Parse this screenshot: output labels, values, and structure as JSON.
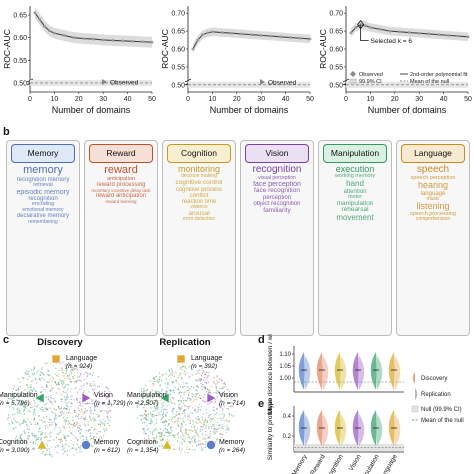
{
  "panel_labels": {
    "b": "b",
    "c": "c",
    "d": "d",
    "e": "e"
  },
  "top_plots": {
    "ylabel": "ROC-AUC",
    "xlabel": "Number of domains",
    "plot1": {
      "yticks": [
        "0.65",
        "0.60",
        "0.55",
        "0.50"
      ],
      "xticks": [
        "0",
        "10",
        "20",
        "30",
        "40",
        "50"
      ],
      "legend": "Observed"
    },
    "plot2": {
      "yticks": [
        "0.70",
        "0.65",
        "0.60",
        "0.55",
        "0.50"
      ],
      "xticks": [
        "0",
        "10",
        "20",
        "30",
        "40",
        "50"
      ],
      "legend": "Observed"
    },
    "plot3": {
      "yticks": [
        "0.70",
        "0.65",
        "0.60",
        "0.55",
        "0.50"
      ],
      "xticks": [
        "0",
        "10",
        "20",
        "30",
        "40",
        "50"
      ],
      "annotation": "Selected k = 6",
      "legend": [
        "Observed",
        "99.9% CI",
        "2nd-order polynomial fit",
        "Mean of the null"
      ]
    }
  },
  "chart_data": [
    {
      "type": "line",
      "xlabel": "Number of domains",
      "ylabel": "ROC-AUC",
      "ylim": [
        0.48,
        0.67
      ],
      "series": [
        {
          "name": "Observed",
          "x": [
            2,
            4,
            6,
            8,
            10,
            14,
            18,
            22,
            26,
            30,
            34,
            38,
            42,
            46,
            50
          ],
          "y": [
            0.655,
            0.64,
            0.625,
            0.615,
            0.61,
            0.605,
            0.6,
            0.598,
            0.597,
            0.595,
            0.594,
            0.593,
            0.592,
            0.591,
            0.59
          ]
        }
      ]
    },
    {
      "type": "line",
      "xlabel": "Number of domains",
      "ylabel": "ROC-AUC",
      "ylim": [
        0.48,
        0.72
      ],
      "series": [
        {
          "name": "Observed",
          "x": [
            2,
            4,
            6,
            8,
            10,
            14,
            18,
            22,
            26,
            30,
            34,
            38,
            42,
            46,
            50
          ],
          "y": [
            0.6,
            0.625,
            0.64,
            0.645,
            0.648,
            0.646,
            0.644,
            0.642,
            0.64,
            0.638,
            0.636,
            0.634,
            0.632,
            0.63,
            0.628
          ]
        }
      ]
    },
    {
      "type": "line",
      "xlabel": "Number of domains",
      "ylabel": "ROC-AUC",
      "ylim": [
        0.48,
        0.72
      ],
      "series": [
        {
          "name": "Observed",
          "x": [
            2,
            4,
            6,
            8,
            10,
            14,
            18,
            22,
            26,
            30,
            34,
            38,
            42,
            46,
            50
          ],
          "y": [
            0.645,
            0.66,
            0.668,
            0.665,
            0.66,
            0.655,
            0.65,
            0.648,
            0.646,
            0.644,
            0.642,
            0.64,
            0.638,
            0.636,
            0.634
          ]
        }
      ]
    }
  ],
  "domains": [
    {
      "name": "Memory",
      "color": "#4a6fb5",
      "fill": "#dfe8f6",
      "words": [
        [
          "memory",
          "11px"
        ],
        [
          "recognition memory",
          "6px"
        ],
        [
          "retrieval",
          "5.5px"
        ],
        [
          "episodic memory",
          "7px"
        ],
        [
          "recognition",
          "6px"
        ],
        [
          "encoding",
          "5.5px"
        ],
        [
          "emotional memory",
          "5px"
        ],
        [
          "declarative memory",
          "6px"
        ],
        [
          "remembering",
          "5px"
        ]
      ],
      "z": "z = -16",
      "ticks": [
        "0",
        "0.19",
        "0.38"
      ],
      "cbar": [
        "#111133",
        "#3b57a5",
        "#8fb0e8",
        "#e8eefb"
      ]
    },
    {
      "name": "Reward",
      "color": "#c0502b",
      "fill": "#f6e0d6",
      "words": [
        [
          "reward",
          "11px"
        ],
        [
          "anticipation",
          "5.5px"
        ],
        [
          "reward processing",
          "6px"
        ],
        [
          "monetary incentive delay task",
          "4.5px"
        ],
        [
          "reward anticipation",
          "6px"
        ],
        [
          "reward learning",
          "4.5px"
        ]
      ],
      "z": "z = -7",
      "ticks": [
        "0",
        "0.09",
        "0.19"
      ],
      "cbar": [
        "#2b0f0a",
        "#9c3a1f",
        "#e98a5c",
        "#fbe5d8"
      ]
    },
    {
      "name": "Cognition",
      "color": "#c99a1e",
      "fill": "#f7efcf",
      "words": [
        [
          "monitoring",
          "9px"
        ],
        [
          "decision making",
          "5px"
        ],
        [
          "cognitive control",
          "6.5px"
        ],
        [
          "cognitive process",
          "6px"
        ],
        [
          "conflict",
          "6px"
        ],
        [
          "reaction time",
          "6px"
        ],
        [
          "valence",
          "5px"
        ],
        [
          "arousal",
          "6.5px"
        ],
        [
          "error detection",
          "5px"
        ]
      ],
      "z": "z = 7",
      "ticks": [
        "0",
        "0.11",
        "0.22"
      ],
      "cbar": [
        "#2a200a",
        "#8c6a14",
        "#e7bf4a",
        "#fbf0cc"
      ]
    },
    {
      "name": "Vision",
      "color": "#7a3fa6",
      "fill": "#eadff3",
      "words": [
        [
          "recognition",
          "10px"
        ],
        [
          "visual perception",
          "5px"
        ],
        [
          "face perception",
          "7px"
        ],
        [
          "face recognition",
          "6.5px"
        ],
        [
          "perception",
          "6px"
        ],
        [
          "object recognition",
          "6px"
        ],
        [
          "familiarity",
          "6.5px"
        ]
      ],
      "z": "z = -19",
      "ticks": [
        "0",
        "0.11",
        "0.21"
      ],
      "cbar": [
        "#1c0b2a",
        "#6a2f96",
        "#b888d8",
        "#f1e6f8"
      ]
    },
    {
      "name": "Manipulation",
      "color": "#2f9a5c",
      "fill": "#d9f1e2",
      "words": [
        [
          "execution",
          "9px"
        ],
        [
          "working memory",
          "5.5px"
        ],
        [
          "hand",
          "8px"
        ],
        [
          "attention",
          "6px"
        ],
        [
          "motor",
          "5.5px"
        ],
        [
          "manipulation",
          "6.5px"
        ],
        [
          "rehearsal",
          "6.5px"
        ],
        [
          "movement",
          "8px"
        ]
      ],
      "z": "z = 59",
      "ticks": [
        "0",
        "0.095",
        "0.19"
      ],
      "cbar": [
        "#0b2416",
        "#247a47",
        "#6cc993",
        "#e2f6ea"
      ]
    },
    {
      "name": "Language",
      "color": "#c98a1f",
      "fill": "#f7ead0",
      "words": [
        [
          "speech",
          "10px"
        ],
        [
          "speech perception",
          "5.5px"
        ],
        [
          "hearing",
          "9px"
        ],
        [
          "language",
          "6px"
        ],
        [
          "music",
          "5px"
        ],
        [
          "listening",
          "9px"
        ],
        [
          "speech processing",
          "5.5px"
        ],
        [
          "comprehension",
          "5px"
        ]
      ],
      "z": "z = -18",
      "ticks": [
        "0",
        "0.12",
        "0.23"
      ],
      "cbar": [
        "#2a1a07",
        "#8d5e14",
        "#e3a846",
        "#fbf0d8"
      ]
    }
  ],
  "networks": {
    "discovery": {
      "title": "Discovery",
      "nodes": [
        {
          "label": "Language",
          "n": "(n = 924)"
        },
        {
          "label": "Manipulation",
          "n": "(n = 5,796)"
        },
        {
          "label": "Vision",
          "n": "(n = 1,729)"
        },
        {
          "label": "Cognition",
          "n": "(n = 3,090)"
        },
        {
          "label": "Memory",
          "n": "(n = 612)"
        }
      ]
    },
    "replication": {
      "title": "Replication",
      "nodes": [
        {
          "label": "Language",
          "n": "(n = 392)"
        },
        {
          "label": "Manipulation",
          "n": "(n = 2,507)"
        },
        {
          "label": "Vision",
          "n": "(n = 714)"
        },
        {
          "label": "Cognition",
          "n": "(n = 1,354)"
        },
        {
          "label": "Memory",
          "n": "(n = 264)"
        }
      ]
    }
  },
  "violin_d": {
    "ylabel": "Mean distance between / within",
    "yticks": [
      "1.10",
      "1.05",
      "1.00"
    ]
  },
  "violin_e": {
    "ylabel": "Similarity to prototype",
    "yticks": [
      "0.4",
      "0.2"
    ],
    "xlabels": [
      "Memory",
      "Reward",
      "Cognition",
      "Vision",
      "Manipulation",
      "Language"
    ]
  },
  "violin_legend": [
    "Discovery",
    "Replication",
    "Null (99.9% CI)",
    "Mean of the null"
  ]
}
